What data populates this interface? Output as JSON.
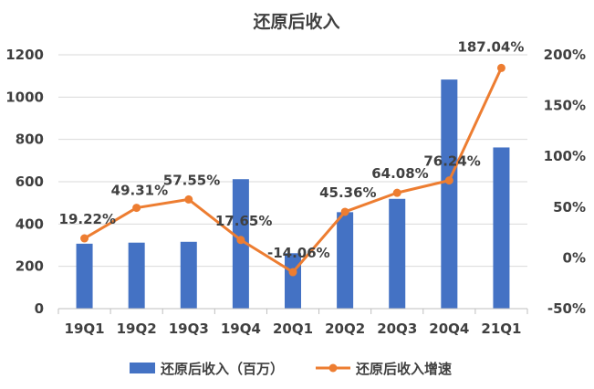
{
  "chart_data": {
    "type": "bar+line",
    "title": "还原后收入",
    "categories": [
      "19Q1",
      "19Q2",
      "19Q3",
      "19Q4",
      "20Q1",
      "20Q2",
      "20Q3",
      "20Q4",
      "21Q1"
    ],
    "series": [
      {
        "name": "还原后收入（百万）",
        "type": "bar",
        "axis": "left",
        "color": "#4472C4",
        "values": [
          307,
          312,
          316,
          612,
          262,
          456,
          519,
          1083,
          762
        ]
      },
      {
        "name": "还原后收入增速",
        "type": "line",
        "axis": "right",
        "color": "#ED7D31",
        "values": [
          19.22,
          49.31,
          57.55,
          17.65,
          -14.06,
          45.36,
          64.08,
          76.24,
          187.04
        ],
        "labels": [
          "19.22%",
          "49.31%",
          "57.55%",
          "17.65%",
          "-14.06%",
          "45.36%",
          "64.08%",
          "76.24%",
          "187.04%"
        ]
      }
    ],
    "y_left": {
      "min": 0,
      "max": 1200,
      "ticks": [
        "0",
        "200",
        "400",
        "600",
        "800",
        "1000",
        "1200"
      ]
    },
    "y_right": {
      "min": -50,
      "max": 200,
      "ticks": [
        "-50%",
        "0%",
        "50%",
        "100%",
        "150%",
        "200%"
      ]
    },
    "grid": "horizontal",
    "legend_position": "bottom"
  }
}
